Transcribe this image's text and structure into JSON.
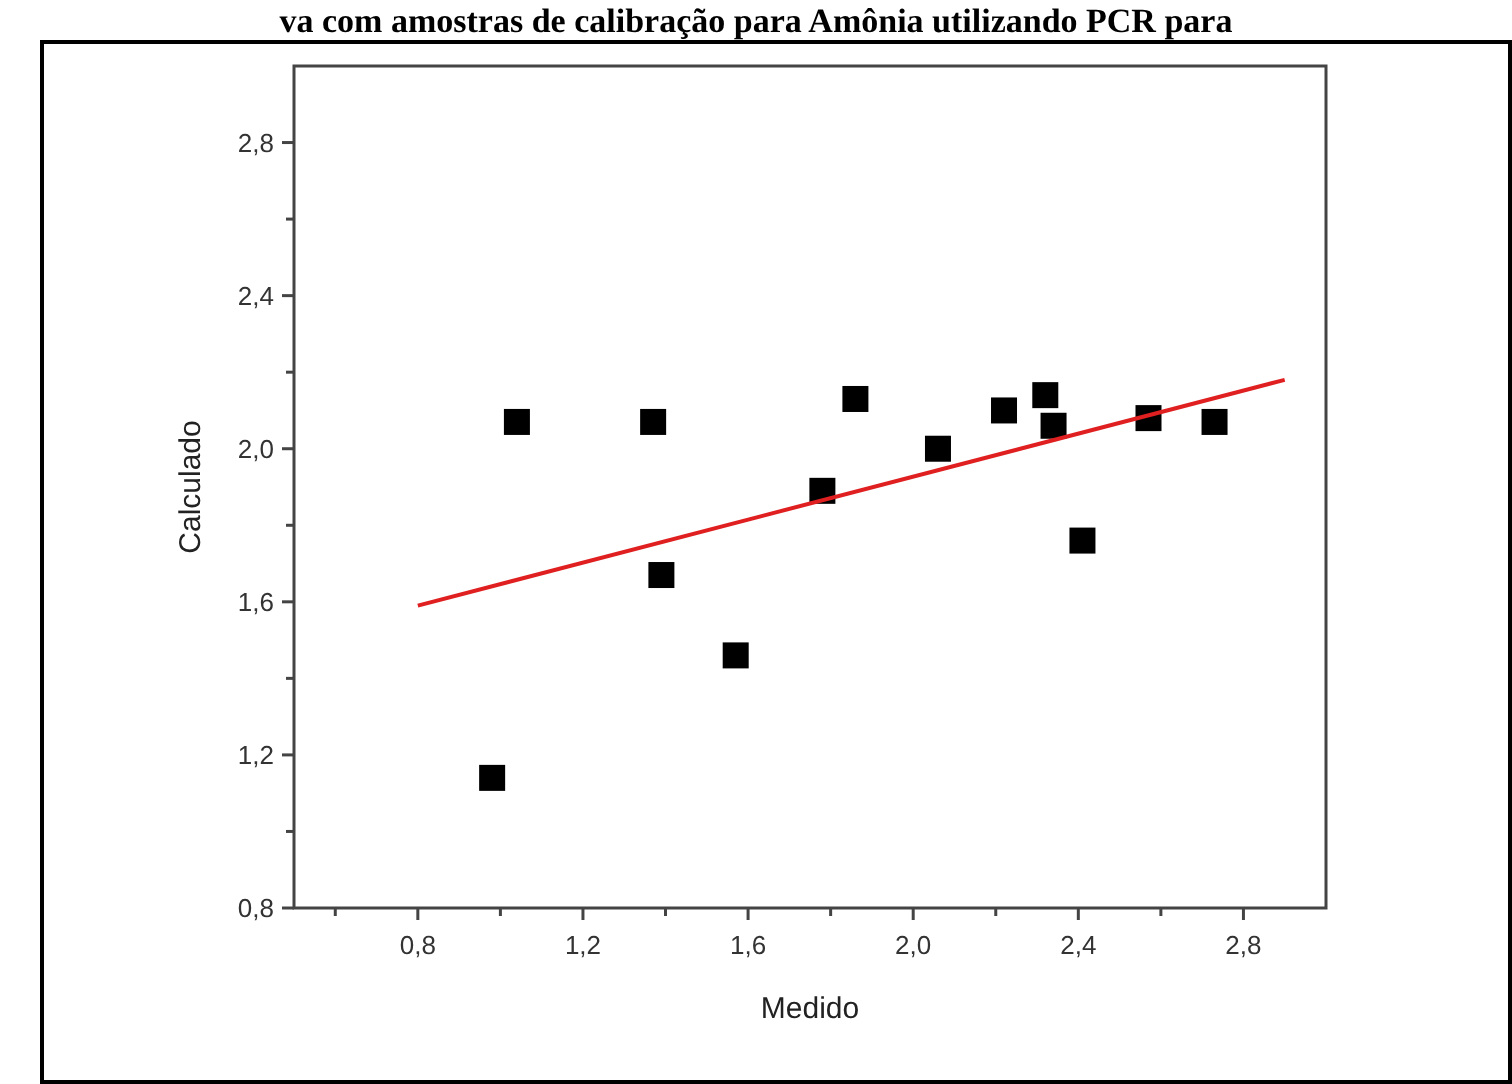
{
  "chart_data": {
    "type": "scatter",
    "title": "va com amostras de calibração para Amônia utilizando PCR para",
    "xlabel": "Medido",
    "ylabel": "Calculado",
    "xlim": [
      0.5,
      3.0
    ],
    "ylim": [
      0.8,
      3.0
    ],
    "xticks": [
      {
        "value": 0.6,
        "label": null
      },
      {
        "value": 0.8,
        "label": "0,8"
      },
      {
        "value": 1.0,
        "label": null
      },
      {
        "value": 1.2,
        "label": "1,2"
      },
      {
        "value": 1.4,
        "label": null
      },
      {
        "value": 1.6,
        "label": "1,6"
      },
      {
        "value": 1.8,
        "label": null
      },
      {
        "value": 2.0,
        "label": "2,0"
      },
      {
        "value": 2.2,
        "label": null
      },
      {
        "value": 2.4,
        "label": "2,4"
      },
      {
        "value": 2.6,
        "label": null
      },
      {
        "value": 2.8,
        "label": "2,8"
      }
    ],
    "yticks": [
      {
        "value": 0.8,
        "label": "0,8"
      },
      {
        "value": 1.0,
        "label": null
      },
      {
        "value": 1.2,
        "label": "1,2"
      },
      {
        "value": 1.4,
        "label": null
      },
      {
        "value": 1.6,
        "label": "1,6"
      },
      {
        "value": 1.8,
        "label": null
      },
      {
        "value": 2.0,
        "label": "2,0"
      },
      {
        "value": 2.2,
        "label": null
      },
      {
        "value": 2.4,
        "label": "2,4"
      },
      {
        "value": 2.6,
        "label": null
      },
      {
        "value": 2.8,
        "label": "2,8"
      }
    ],
    "grid": false,
    "marker": "square",
    "series": [
      {
        "color": "#000000",
        "x": [
          0.98,
          1.04,
          1.37,
          1.39,
          1.57,
          1.78,
          1.86,
          2.06,
          2.22,
          2.32,
          2.34,
          2.41,
          2.57,
          2.73
        ],
        "values": [
          1.14,
          2.07,
          2.07,
          1.67,
          1.46,
          1.89,
          2.13,
          2.0,
          2.1,
          2.14,
          2.06,
          1.76,
          2.08,
          2.07
        ]
      },
      {
        "type": "line",
        "color": "#e02020",
        "line_style": "solid",
        "marker": "none",
        "x": [
          0.8,
          2.9
        ],
        "values": [
          1.59,
          2.18
        ]
      }
    ]
  }
}
